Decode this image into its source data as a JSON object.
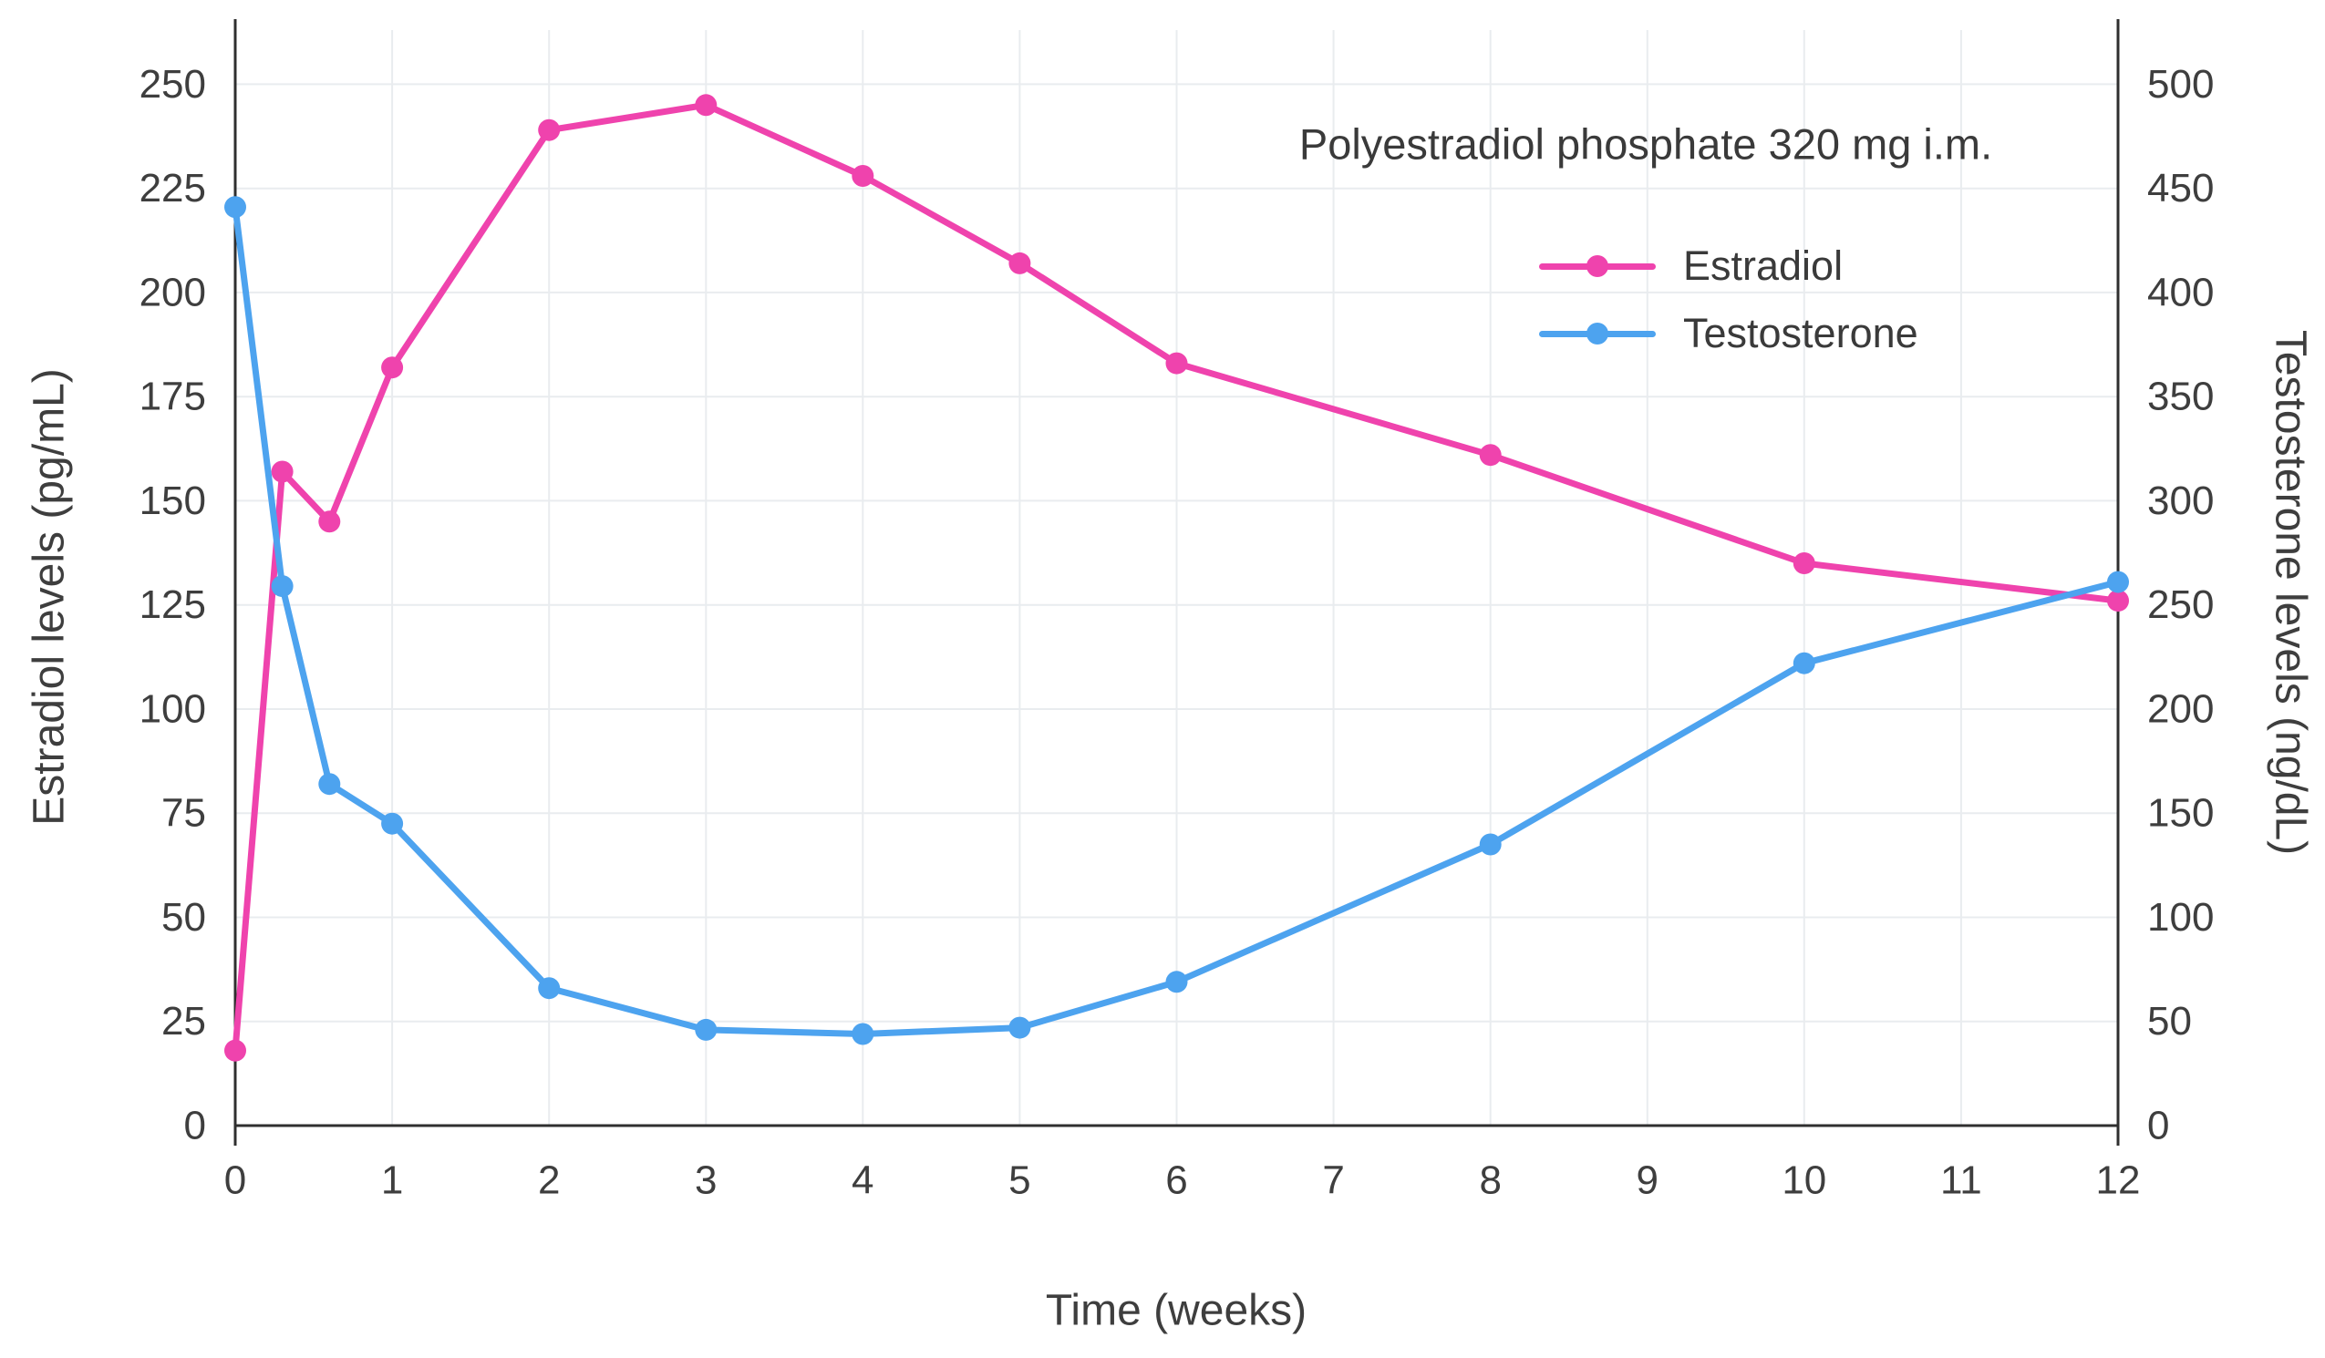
{
  "chart_data": {
    "type": "line",
    "title": "Polyestradiol phosphate 320 mg i.m.",
    "xlabel": "Time (weeks)",
    "ylabel_left": "Estradiol levels (pg/mL)",
    "ylabel_right": "Testosterone levels (ng/dL)",
    "x": [
      0,
      0.3,
      0.6,
      1,
      2,
      3,
      4,
      5,
      6,
      8,
      10,
      12
    ],
    "x_ticks": [
      0,
      1,
      2,
      3,
      4,
      5,
      6,
      7,
      8,
      9,
      10,
      11,
      12
    ],
    "y_left_ticks": [
      0,
      25,
      50,
      75,
      100,
      125,
      150,
      175,
      200,
      225,
      250
    ],
    "y_right_ticks": [
      0,
      50,
      100,
      150,
      200,
      250,
      300,
      350,
      400,
      450,
      500
    ],
    "ylim_left": [
      0,
      263
    ],
    "ylim_right": [
      0,
      526
    ],
    "xlim": [
      0,
      12
    ],
    "grid": true,
    "legend_position": "inside-upper-right",
    "colors": {
      "grid": "#e9ecef",
      "axis": "#2f2f2f",
      "text": "#3e3e3e"
    },
    "series": [
      {
        "name": "Estradiol",
        "axis": "left",
        "unit": "pg/mL",
        "color": "#ef43ad",
        "values": [
          18,
          157,
          145,
          182,
          239,
          245,
          228,
          207,
          183,
          161,
          135,
          126
        ]
      },
      {
        "name": "Testosterone",
        "axis": "right",
        "unit": "ng/dL",
        "color": "#4da3ef",
        "values": [
          441,
          259,
          164,
          145,
          66,
          46,
          44,
          47,
          69,
          135,
          222,
          261
        ]
      }
    ]
  }
}
